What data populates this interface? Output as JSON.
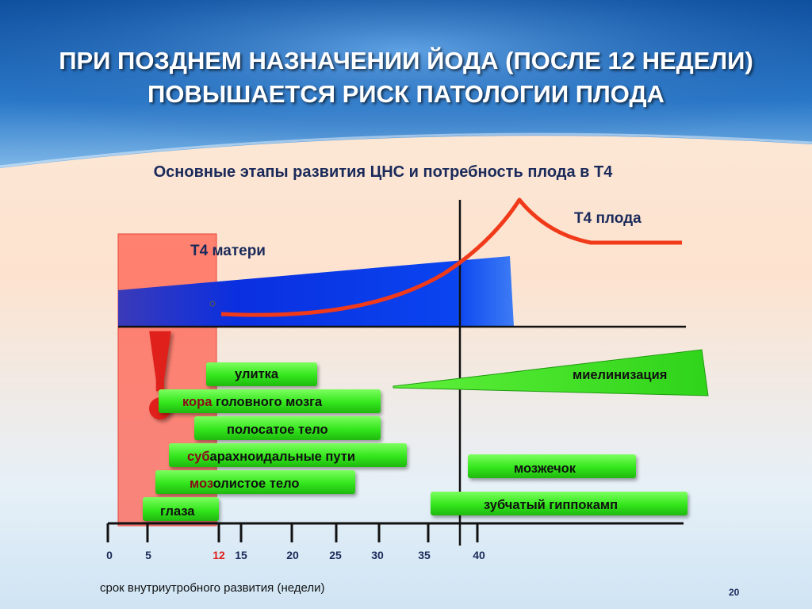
{
  "slide": {
    "title_line1": "ПРИ ПОЗДНЕМ НАЗНАЧЕНИИ ЙОДА (ПОСЛЕ 12 НЕДЕЛИ)",
    "title_line2": "ПОВЫШАЕТСЯ РИСК ПАТОЛОГИИ ПЛОДА",
    "subtitle": "Основные этапы развития ЦНС и потребность плода в Т4",
    "page_number": "20"
  },
  "diagram": {
    "maternal_label": "Т4 матери",
    "fetal_label": "Т4 плода",
    "x_axis_label": "срок внутриутробного развития (недели)",
    "x_ticks": [
      "0",
      "5",
      "12",
      "15",
      "20",
      "25",
      "30",
      "35",
      "40"
    ],
    "highlight_tick": "12",
    "alert_mark": "!",
    "bars": {
      "cochlea": "улитка",
      "cortex_prefix": "кора",
      "cortex_rest": " головного мозга",
      "striatum": "полосатое тело",
      "subarachnoid_prefix": "суб",
      "subarachnoid_rest": "арахноидальные пути",
      "corpus_callosum_prefix": "моз",
      "corpus_callosum_rest": "олистое тело",
      "eyes": "глаза",
      "myelination": "миелинизация",
      "cerebellum": "мозжечок",
      "dentate_hippocampus": "зубчатый гиппокамп"
    },
    "colors": {
      "title_bg": "#1c5fae",
      "maternal_t4": "#0a2fe0",
      "fetal_t4_curve": "#f03a1a",
      "bars": "#33e61c",
      "critical_zone": "#ff5a4a",
      "alert": "#e0201a",
      "prefix_text": "#8a0a1a",
      "highlight_tick": "#e0201a"
    }
  }
}
